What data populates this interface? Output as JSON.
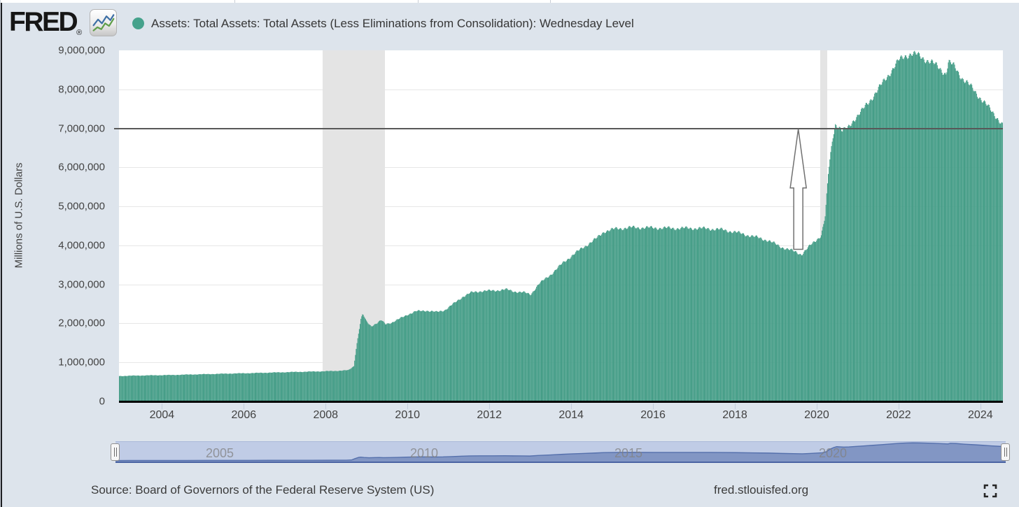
{
  "header": {
    "logo_text": "FRED",
    "registered_mark": "®",
    "logo_icon": "sparkline-chart-icon",
    "legend_marker_color": "#45a28c",
    "series_title": "Assets: Total Assets: Total Assets (Less Eliminations from Consolidation): Wednesday Level"
  },
  "y_axis": {
    "title": "Millions of U.S. Dollars",
    "tick_labels": [
      "9,000,000",
      "8,000,000",
      "7,000,000",
      "6,000,000",
      "5,000,000",
      "4,000,000",
      "3,000,000",
      "2,000,000",
      "1,000,000",
      "0"
    ]
  },
  "x_axis": {
    "tick_labels": [
      "2004",
      "2006",
      "2008",
      "2010",
      "2012",
      "2014",
      "2016",
      "2018",
      "2020",
      "2022",
      "2024"
    ]
  },
  "navigator": {
    "labels": [
      "2005",
      "2010",
      "2015",
      "2020"
    ],
    "track_color": "#c0cce6",
    "area_color": "#8296c4",
    "line_color": "#5570ac",
    "baseline_color": "#4a64a3"
  },
  "footer": {
    "source": "Source: Board of Governors of the Federal Reserve System (US)",
    "site": "fred.stlouisfed.org",
    "fullscreen_icon": "fullscreen-expand-icon"
  },
  "chart_data": {
    "type": "area",
    "title": "Assets: Total Assets: Total Assets (Less Eliminations from Consolidation): Wednesday Level",
    "ylabel": "Millions of U.S. Dollars",
    "frequency": "weekly",
    "x_domain": [
      2002.95,
      2024.55
    ],
    "ylim": [
      0,
      9000000
    ],
    "y_tick_step": 1000000,
    "x_ticks": [
      2004,
      2006,
      2008,
      2010,
      2012,
      2014,
      2016,
      2018,
      2020,
      2022,
      2024
    ],
    "grid": "horizontal",
    "legend_position": "top-left",
    "series_color": "#48a18b",
    "recession_bands": [
      [
        2007.92,
        2009.45
      ],
      [
        2020.08,
        2020.25
      ]
    ],
    "annotation_line_value": 7000000,
    "annotation_arrow": {
      "x": 2019.55,
      "value_from": 3900000,
      "value_to": 7000000,
      "direction": "up"
    },
    "noise_amplitude": 0.012,
    "anchors": [
      [
        2002.95,
        650000
      ],
      [
        2003.3,
        660000
      ],
      [
        2003.7,
        668000
      ],
      [
        2004.2,
        676000
      ],
      [
        2004.7,
        690000
      ],
      [
        2005.2,
        702000
      ],
      [
        2005.7,
        715000
      ],
      [
        2006.2,
        726000
      ],
      [
        2006.7,
        740000
      ],
      [
        2007.2,
        754000
      ],
      [
        2007.7,
        766000
      ],
      [
        2008.2,
        780000
      ],
      [
        2008.55,
        800000
      ],
      [
        2008.68,
        905000
      ],
      [
        2008.75,
        1450000
      ],
      [
        2008.85,
        2100000
      ],
      [
        2008.9,
        2240000
      ],
      [
        2008.98,
        2060000
      ],
      [
        2009.1,
        1930000
      ],
      [
        2009.25,
        2010000
      ],
      [
        2009.35,
        2080000
      ],
      [
        2009.45,
        1980000
      ],
      [
        2009.6,
        2020000
      ],
      [
        2009.8,
        2120000
      ],
      [
        2010.0,
        2230000
      ],
      [
        2010.2,
        2310000
      ],
      [
        2010.45,
        2330000
      ],
      [
        2010.7,
        2290000
      ],
      [
        2010.9,
        2340000
      ],
      [
        2011.1,
        2490000
      ],
      [
        2011.35,
        2690000
      ],
      [
        2011.55,
        2790000
      ],
      [
        2011.8,
        2830000
      ],
      [
        2012.1,
        2840000
      ],
      [
        2012.4,
        2870000
      ],
      [
        2012.6,
        2820000
      ],
      [
        2012.85,
        2790000
      ],
      [
        2013.0,
        2740000
      ],
      [
        2013.2,
        3010000
      ],
      [
        2013.5,
        3260000
      ],
      [
        2013.8,
        3560000
      ],
      [
        2014.0,
        3730000
      ],
      [
        2014.3,
        3960000
      ],
      [
        2014.6,
        4170000
      ],
      [
        2014.8,
        4360000
      ],
      [
        2015.1,
        4430000
      ],
      [
        2015.5,
        4460000
      ],
      [
        2016.0,
        4450000
      ],
      [
        2016.5,
        4440000
      ],
      [
        2017.0,
        4440000
      ],
      [
        2017.35,
        4430000
      ],
      [
        2017.7,
        4400000
      ],
      [
        2018.0,
        4340000
      ],
      [
        2018.4,
        4240000
      ],
      [
        2018.8,
        4130000
      ],
      [
        2019.1,
        3970000
      ],
      [
        2019.4,
        3860000
      ],
      [
        2019.62,
        3770000
      ],
      [
        2019.8,
        3960000
      ],
      [
        2019.95,
        4110000
      ],
      [
        2020.1,
        4260000
      ],
      [
        2020.2,
        4750000
      ],
      [
        2020.28,
        5900000
      ],
      [
        2020.38,
        6750000
      ],
      [
        2020.45,
        7120000
      ],
      [
        2020.52,
        7060000
      ],
      [
        2020.62,
        6930000
      ],
      [
        2020.75,
        7000000
      ],
      [
        2020.9,
        7230000
      ],
      [
        2021.1,
        7450000
      ],
      [
        2021.3,
        7730000
      ],
      [
        2021.55,
        8080000
      ],
      [
        2021.8,
        8460000
      ],
      [
        2022.0,
        8740000
      ],
      [
        2022.15,
        8860000
      ],
      [
        2022.3,
        8915000
      ],
      [
        2022.45,
        8880000
      ],
      [
        2022.6,
        8800000
      ],
      [
        2022.8,
        8690000
      ],
      [
        2023.0,
        8540000
      ],
      [
        2023.15,
        8400000
      ],
      [
        2023.21,
        8700000
      ],
      [
        2023.35,
        8590000
      ],
      [
        2023.55,
        8290000
      ],
      [
        2023.8,
        8020000
      ],
      [
        2024.0,
        7770000
      ],
      [
        2024.2,
        7520000
      ],
      [
        2024.4,
        7280000
      ],
      [
        2024.55,
        7060000
      ]
    ]
  }
}
